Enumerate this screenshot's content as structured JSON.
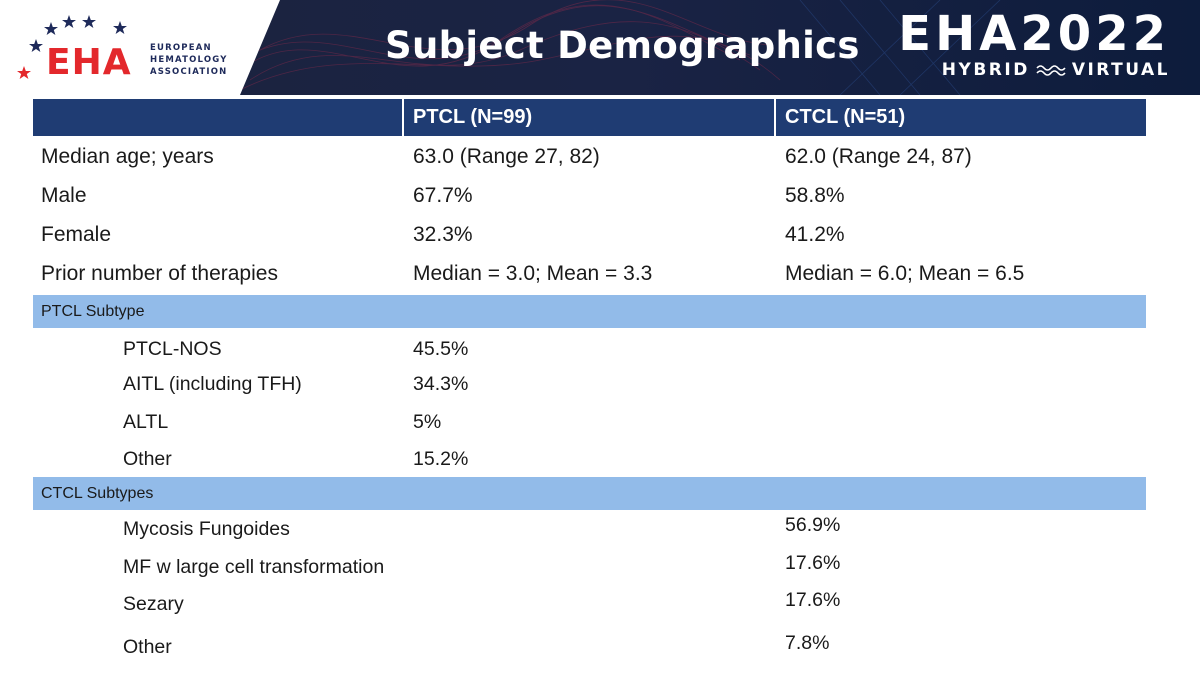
{
  "header": {
    "title": "Subject Demographics",
    "logo": {
      "word": "EHA",
      "sub_line1": "EUROPEAN",
      "sub_line2": "HEMATOLOGY",
      "sub_line3": "ASSOCIATION"
    },
    "event": {
      "name": "EHA2022",
      "hybrid": "HYBRID",
      "virtual": "VIRTUAL"
    }
  },
  "table": {
    "columns": [
      "",
      "PTCL (N=99)",
      "CTCL (N=51)"
    ],
    "rows": [
      {
        "label": "Median age; years",
        "ptcl": "63.0 (Range 27, 82)",
        "ctcl": "62.0 (Range 24, 87)"
      },
      {
        "label": "Male",
        "ptcl": "67.7%",
        "ctcl": "58.8%"
      },
      {
        "label": "Female",
        "ptcl": "32.3%",
        "ctcl": "41.2%"
      },
      {
        "label": "Prior number of therapies",
        "ptcl": "Median = 3.0; Mean = 3.3",
        "ctcl": "Median = 6.0; Mean = 6.5"
      }
    ],
    "ptcl_section": {
      "title": "PTCL Subtype",
      "rows": [
        {
          "label": "PTCL-NOS",
          "ptcl": "45.5%"
        },
        {
          "label": "AITL (including TFH)",
          "ptcl": "34.3%"
        },
        {
          "label": "ALTL",
          "ptcl": "5%"
        },
        {
          "label": "Other",
          "ptcl": "15.2%"
        }
      ]
    },
    "ctcl_section": {
      "title": "CTCL Subtypes",
      "rows": [
        {
          "label": "Mycosis Fungoides",
          "ctcl": "56.9%"
        },
        {
          "label": "MF w large cell transformation",
          "ctcl": "17.6%"
        },
        {
          "label": "Sezary",
          "ctcl": "17.6%"
        },
        {
          "label": "Other",
          "ctcl": "7.8%"
        }
      ]
    }
  },
  "colors": {
    "header_band": "#1f3c73",
    "section_band": "#92bbe9",
    "logo_red": "#e3282c",
    "logo_navy": "#1e2a5a"
  }
}
